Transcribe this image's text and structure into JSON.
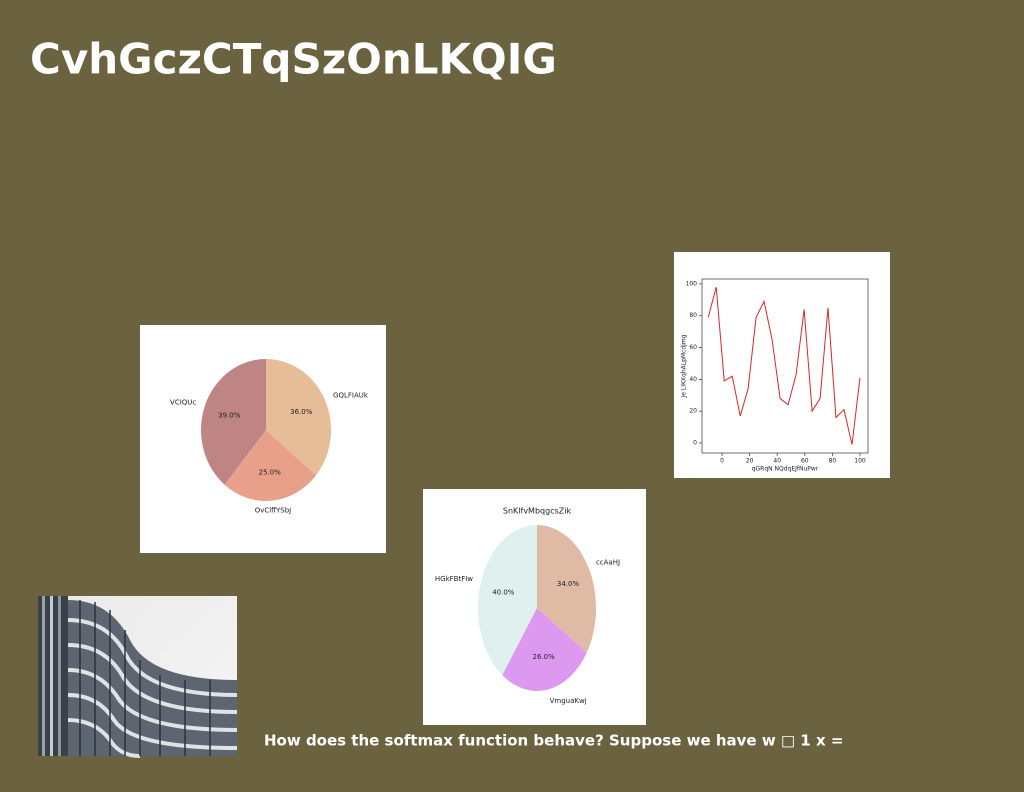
{
  "title": "CvhGczCTqSzOnLKQIG",
  "caption": "How does the softmax function behave? Suppose we have w □ 1 x =",
  "chart_data": [
    {
      "type": "pie",
      "categories": [
        "VCIQUc",
        "OvClffYSbJ",
        "GQLFIAUk"
      ],
      "values": [
        39,
        25,
        36
      ],
      "value_labels": [
        "39.0%",
        "25.0%",
        "36.0%"
      ],
      "colors": [
        "#bf8484",
        "#e8a08a",
        "#e6bd96"
      ]
    },
    {
      "type": "line",
      "x_label": "qGRqN NQdqEJfNuPwr",
      "y_label": "Je LIKXqhALpMcdjmg",
      "x": [
        -10,
        -4.2,
        1.6,
        7.4,
        13.2,
        18.9,
        24.7,
        30.5,
        36.3,
        42.1,
        47.9,
        53.7,
        59.5,
        65.3,
        71.1,
        76.8,
        82.6,
        88.4,
        94.2,
        100
      ],
      "values": [
        79,
        98,
        39,
        42,
        17,
        34,
        79,
        89,
        65,
        28,
        24,
        43,
        84,
        20,
        28,
        85,
        16,
        21,
        -1,
        41
      ],
      "color": "#d62728",
      "xlim": [
        -14.5,
        105.8
      ],
      "ylim": [
        -6.3,
        103.1
      ],
      "xticks": [
        0,
        20,
        40,
        60,
        80,
        100
      ],
      "yticks": [
        0,
        20,
        40,
        60,
        80,
        100
      ]
    },
    {
      "type": "pie",
      "title": "SnKlfvMbqgcsZik",
      "categories": [
        "HGkFBtFIw",
        "VmguaKwj",
        "ccAaHJ"
      ],
      "values": [
        40,
        26,
        34
      ],
      "value_labels": [
        "40.0%",
        "26.0%",
        "34.0%"
      ],
      "colors": [
        "#dff0ee",
        "#dd99f0",
        "#dfbba6"
      ]
    }
  ]
}
